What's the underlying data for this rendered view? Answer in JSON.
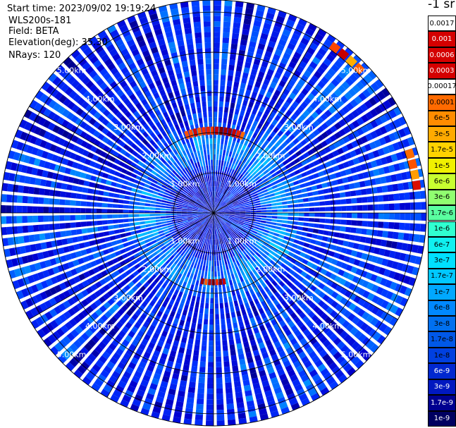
{
  "info": {
    "start_time": "Start time: 2023/09/02 19:19:24",
    "instrument": "WLS200s-181",
    "field": "Field: BETA",
    "elevation": "Elevation(deg): 35.30",
    "nrays": "NRays: 120"
  },
  "colorbar": {
    "title": "-1 sr",
    "ticks": [
      "0.0017",
      "0.001",
      "0.0006",
      "0.0003",
      "0.00017",
      "0.0001",
      "6e-5",
      "3e-5",
      "1.7e-5",
      "1e-5",
      "6e-6",
      "3e-6",
      "1.7e-6",
      "1e-6",
      "6e-7",
      "3e-7",
      "1.7e-7",
      "1e-7",
      "6e-8",
      "3e-8",
      "1.7e-8",
      "1e-8",
      "6e-9",
      "3e-9",
      "1.7e-9",
      "1e-9"
    ],
    "colors": [
      "#ffffff",
      "#d40000",
      "#d40000",
      "#d40000",
      "#ffffff",
      "#ff6a00",
      "#ff8c00",
      "#ffaa00",
      "#ffd200",
      "#f0f000",
      "#c8ff30",
      "#90ff70",
      "#5affa0",
      "#30ffd0",
      "#10f0f0",
      "#00e0ff",
      "#00c8ff",
      "#00a8ff",
      "#0088ff",
      "#0070f0",
      "#0058e8",
      "#0040e0",
      "#0028d0",
      "#0018c0",
      "#000090",
      "#000060"
    ]
  },
  "chart_data": {
    "type": "heatmap",
    "projection": "polar PPI scan",
    "field": "BETA",
    "units": "-1 sr",
    "nrays": 120,
    "elevation_deg": 35.3,
    "range_rings_km": [
      1.0,
      2.0,
      3.0,
      4.0,
      5.0
    ],
    "ring_labels": [
      "1.00km",
      "2.00km",
      "3.00km",
      "4.00km",
      "5.00km"
    ],
    "max_range_km": 5.3,
    "colorscale": "log",
    "value_range": [
      1e-09,
      0.0017
    ],
    "background_level": 1e-08,
    "features": [
      {
        "description": "high backscatter arcs north",
        "azimuth_deg": [
          340,
          20
        ],
        "range_km": [
          1.95,
          2.15
        ],
        "level": 0.0006
      },
      {
        "description": "high backscatter arc south",
        "azimuth_deg": [
          170,
          190
        ],
        "range_km": [
          1.65,
          1.8
        ],
        "level": 0.0006
      },
      {
        "description": "high backscatter patch NE",
        "azimuth_deg": [
          35,
          45
        ],
        "range_km": [
          5.0,
          5.2
        ],
        "level": 0.0003
      },
      {
        "description": "high backscatter patch E",
        "azimuth_deg": [
          72,
          82
        ],
        "range_km": [
          5.0,
          5.2
        ],
        "level": 0.0003
      }
    ]
  }
}
